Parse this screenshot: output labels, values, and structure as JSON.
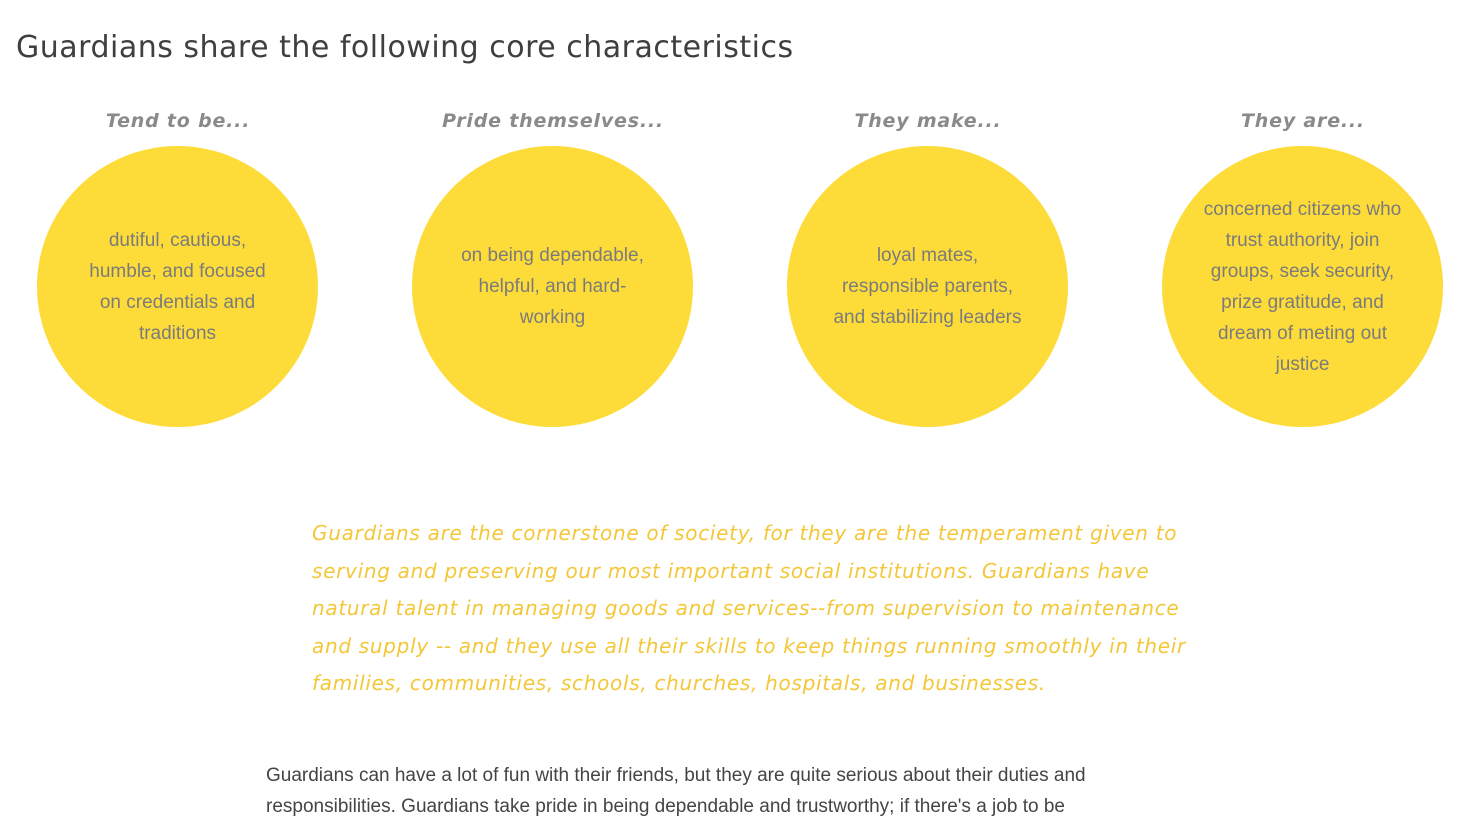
{
  "page": {
    "title": "Guardians share the following core characteristics"
  },
  "characteristics": [
    {
      "heading": "Tend to be...",
      "text": "dutiful, cautious, humble, and focused on credentials and traditions"
    },
    {
      "heading": "Pride themselves...",
      "text": "on being dependable, helpful, and hard-working"
    },
    {
      "heading": "They make...",
      "text": "loyal mates, responsible parents, and stabilizing leaders"
    },
    {
      "heading": "They are...",
      "text": "concerned citizens who trust authority, join groups, seek security, prize gratitude, and dream of meting out justice"
    }
  ],
  "quote": {
    "text": "Guardians are the cornerstone of society, for they are the temperament given to serving and preserving our most important social institutions. Guardians have natural talent in managing goods and services--from supervision to maintenance and supply -- and they use all their skills to keep things running smoothly in their families, communities, schools, churches, hospitals, and businesses."
  },
  "body": {
    "paragraph": "Guardians can have a lot of fun with their friends, but they are quite serious about their duties and responsibilities. Guardians take pride in being dependable and trustworthy; if there's a job to be"
  },
  "colors": {
    "circle": "#fddc3a",
    "quote": "#f3c738",
    "heading": "#8a8a8a",
    "title": "#3f3f3f"
  }
}
